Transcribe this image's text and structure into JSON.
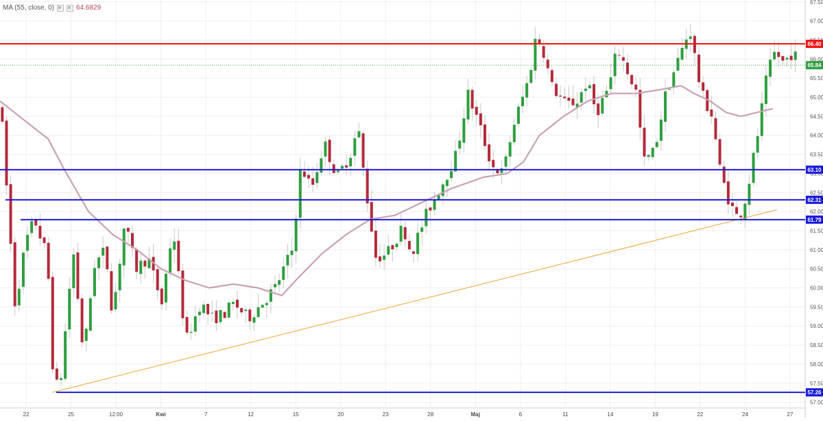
{
  "indicator": {
    "label": "MA (55, close, 0)",
    "value": "64.6829",
    "color": "#b5485a"
  },
  "chart_data": {
    "type": "candlestick",
    "y_axis": {
      "range": [
        56.85,
        67.55
      ],
      "ticks": [
        "57.00",
        "57.50",
        "58.00",
        "58.50",
        "59.00",
        "59.50",
        "60.00",
        "60.50",
        "61.00",
        "61.50",
        "62.00",
        "62.50",
        "63.00",
        "63.50",
        "64.00",
        "64.50",
        "65.00",
        "65.50",
        "66.00",
        "66.50",
        "67.00",
        "67.50"
      ],
      "position": "right"
    },
    "x_axis": {
      "labels": [
        {
          "text": "22",
          "bold": false
        },
        {
          "text": "25",
          "bold": false
        },
        {
          "text": "12:00",
          "bold": false
        },
        {
          "text": "Kwi",
          "bold": true
        },
        {
          "text": "7",
          "bold": false
        },
        {
          "text": "12",
          "bold": false
        },
        {
          "text": "15",
          "bold": false
        },
        {
          "text": "20",
          "bold": false
        },
        {
          "text": "23",
          "bold": false
        },
        {
          "text": "28",
          "bold": false
        },
        {
          "text": "Maj",
          "bold": true
        },
        {
          "text": "6",
          "bold": false
        },
        {
          "text": "11",
          "bold": false
        },
        {
          "text": "14",
          "bold": false
        },
        {
          "text": "19",
          "bold": false
        },
        {
          "text": "22",
          "bold": false
        },
        {
          "text": "24",
          "bold": false
        },
        {
          "text": "27",
          "bold": false
        }
      ]
    },
    "grid": true,
    "horizontal_levels": [
      {
        "value": 66.4,
        "label": "66.40",
        "color": "#f01414"
      },
      {
        "value": 63.1,
        "label": "63.10",
        "color": "#1a1adc"
      },
      {
        "value": 62.31,
        "label": "62.31",
        "color": "#1a1adc"
      },
      {
        "value": 61.79,
        "label": "61.79",
        "color": "#1a1adc"
      },
      {
        "value": 57.26,
        "label": "57.26",
        "color": "#1a1adc"
      }
    ],
    "last_price": {
      "value": 65.84,
      "label": "65.84",
      "color": "#2e9e3e"
    },
    "trendline": {
      "start": [
        0.065,
        57.26
      ],
      "end": [
        0.965,
        62.05
      ],
      "color": "#f5a030"
    },
    "ma_color": "#c9a0b4",
    "candle_colors": {
      "up": "#2e9e3e",
      "down": "#b22a3a"
    },
    "price_path": [
      [
        0,
        64.8
      ],
      [
        0.018,
        59.5
      ],
      [
        0.031,
        61.2
      ],
      [
        0.042,
        61.8
      ],
      [
        0.058,
        60.8
      ],
      [
        0.066,
        57.4
      ],
      [
        0.074,
        57.5
      ],
      [
        0.09,
        61.0
      ],
      [
        0.103,
        58.2
      ],
      [
        0.116,
        60.6
      ],
      [
        0.13,
        61.0
      ],
      [
        0.139,
        59.3
      ],
      [
        0.154,
        61.7
      ],
      [
        0.168,
        60.5
      ],
      [
        0.183,
        60.8
      ],
      [
        0.2,
        59.6
      ],
      [
        0.214,
        61.6
      ],
      [
        0.23,
        58.6
      ],
      [
        0.248,
        59.6
      ],
      [
        0.262,
        59.2
      ],
      [
        0.276,
        59.3
      ],
      [
        0.29,
        59.6
      ],
      [
        0.307,
        59.2
      ],
      [
        0.32,
        59.5
      ],
      [
        0.341,
        60.0
      ],
      [
        0.362,
        61.0
      ],
      [
        0.373,
        63.2
      ],
      [
        0.386,
        62.6
      ],
      [
        0.402,
        63.8
      ],
      [
        0.418,
        62.9
      ],
      [
        0.434,
        63.5
      ],
      [
        0.444,
        64.2
      ],
      [
        0.452,
        62.8
      ],
      [
        0.466,
        60.8
      ],
      [
        0.48,
        60.9
      ],
      [
        0.5,
        61.6
      ],
      [
        0.51,
        60.9
      ],
      [
        0.53,
        62.0
      ],
      [
        0.55,
        62.8
      ],
      [
        0.566,
        63.5
      ],
      [
        0.58,
        65.1
      ],
      [
        0.594,
        64.3
      ],
      [
        0.61,
        63.2
      ],
      [
        0.624,
        63.0
      ],
      [
        0.636,
        64.2
      ],
      [
        0.656,
        65.5
      ],
      [
        0.664,
        66.5
      ],
      [
        0.672,
        66.4
      ],
      [
        0.684,
        65.3
      ],
      [
        0.702,
        64.8
      ],
      [
        0.716,
        64.9
      ],
      [
        0.728,
        65.4
      ],
      [
        0.74,
        64.6
      ],
      [
        0.756,
        65.3
      ],
      [
        0.766,
        66.3
      ],
      [
        0.79,
        65.1
      ],
      [
        0.798,
        63.3
      ],
      [
        0.812,
        63.6
      ],
      [
        0.826,
        65.1
      ],
      [
        0.84,
        65.9
      ],
      [
        0.856,
        66.8
      ],
      [
        0.87,
        65.1
      ],
      [
        0.884,
        64.5
      ],
      [
        0.894,
        63.0
      ],
      [
        0.906,
        62.2
      ],
      [
        0.916,
        61.8
      ],
      [
        0.926,
        62.4
      ],
      [
        0.94,
        64.0
      ],
      [
        0.952,
        65.6
      ],
      [
        0.962,
        66.2
      ],
      [
        0.972,
        65.9
      ],
      [
        0.984,
        66.2
      ],
      [
        0.998,
        65.6
      ]
    ],
    "ma_path": [
      [
        0,
        64.9
      ],
      [
        0.03,
        64.4
      ],
      [
        0.06,
        63.9
      ],
      [
        0.08,
        63.1
      ],
      [
        0.11,
        62.0
      ],
      [
        0.14,
        61.4
      ],
      [
        0.17,
        61.0
      ],
      [
        0.2,
        60.5
      ],
      [
        0.23,
        60.2
      ],
      [
        0.26,
        60.0
      ],
      [
        0.29,
        60.1
      ],
      [
        0.32,
        60.0
      ],
      [
        0.35,
        59.8
      ],
      [
        0.372,
        60.3
      ],
      [
        0.4,
        60.9
      ],
      [
        0.43,
        61.4
      ],
      [
        0.46,
        61.8
      ],
      [
        0.49,
        61.9
      ],
      [
        0.52,
        62.2
      ],
      [
        0.56,
        62.6
      ],
      [
        0.6,
        62.9
      ],
      [
        0.63,
        63.0
      ],
      [
        0.65,
        63.3
      ],
      [
        0.67,
        64.0
      ],
      [
        0.7,
        64.5
      ],
      [
        0.73,
        64.9
      ],
      [
        0.76,
        65.1
      ],
      [
        0.79,
        65.1
      ],
      [
        0.82,
        65.2
      ],
      [
        0.846,
        65.3
      ],
      [
        0.862,
        65.1
      ],
      [
        0.882,
        64.9
      ],
      [
        0.902,
        64.6
      ],
      [
        0.92,
        64.5
      ],
      [
        0.94,
        64.6
      ],
      [
        0.96,
        64.7
      ]
    ]
  }
}
